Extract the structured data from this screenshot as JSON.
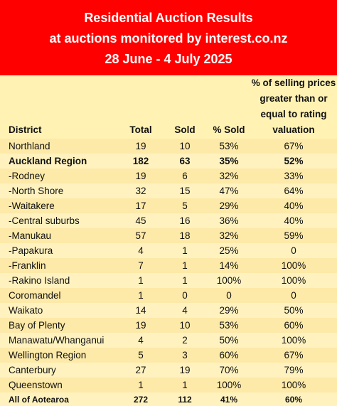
{
  "header": {
    "line1": "Residential Auction Results",
    "line2": "at auctions monitored by interest.co.nz",
    "line3": "28 June - 4 July 2025"
  },
  "columns": {
    "district": "District",
    "total": "Total",
    "sold": "Sold",
    "pct_sold": "% Sold",
    "rv": "% of selling prices greater than or equal to rating valuation"
  },
  "rows": [
    {
      "district": "Northland",
      "total": "19",
      "sold": "10",
      "pct_sold": "53%",
      "rv": "67%"
    },
    {
      "district": "Auckland Region",
      "total": "182",
      "sold": "63",
      "pct_sold": "35%",
      "rv": "52%"
    },
    {
      "district": "-Rodney",
      "total": "19",
      "sold": "6",
      "pct_sold": "32%",
      "rv": "33%"
    },
    {
      "district": "-North Shore",
      "total": "32",
      "sold": "15",
      "pct_sold": "47%",
      "rv": "64%"
    },
    {
      "district": "-Waitakere",
      "total": "17",
      "sold": "5",
      "pct_sold": "29%",
      "rv": "40%"
    },
    {
      "district": "-Central suburbs",
      "total": "45",
      "sold": "16",
      "pct_sold": "36%",
      "rv": "40%"
    },
    {
      "district": "-Manukau",
      "total": "57",
      "sold": "18",
      "pct_sold": "32%",
      "rv": "59%"
    },
    {
      "district": "-Papakura",
      "total": "4",
      "sold": "1",
      "pct_sold": "25%",
      "rv": "0"
    },
    {
      "district": "-Franklin",
      "total": "7",
      "sold": "1",
      "pct_sold": "14%",
      "rv": "100%"
    },
    {
      "district": "-Rakino Island",
      "total": "1",
      "sold": "1",
      "pct_sold": "100%",
      "rv": "100%"
    },
    {
      "district": "Coromandel",
      "total": "1",
      "sold": "0",
      "pct_sold": "0",
      "rv": "0"
    },
    {
      "district": "Waikato",
      "total": "14",
      "sold": "4",
      "pct_sold": "29%",
      "rv": "50%"
    },
    {
      "district": "Bay of Plenty",
      "total": "19",
      "sold": "10",
      "pct_sold": "53%",
      "rv": "60%"
    },
    {
      "district": "Manawatu/Whanganui",
      "total": "4",
      "sold": "2",
      "pct_sold": "50%",
      "rv": "100%"
    },
    {
      "district": "Wellington Region",
      "total": "5",
      "sold": "3",
      "pct_sold": "60%",
      "rv": "67%"
    },
    {
      "district": "Canterbury",
      "total": "27",
      "sold": "19",
      "pct_sold": "70%",
      "rv": "79%"
    },
    {
      "district": "Queenstown",
      "total": "1",
      "sold": "1",
      "pct_sold": "100%",
      "rv": "100%"
    }
  ],
  "summary": {
    "district": "All of Aotearoa",
    "total": "272",
    "sold": "112",
    "pct_sold": "41%",
    "rv": "60%"
  }
}
